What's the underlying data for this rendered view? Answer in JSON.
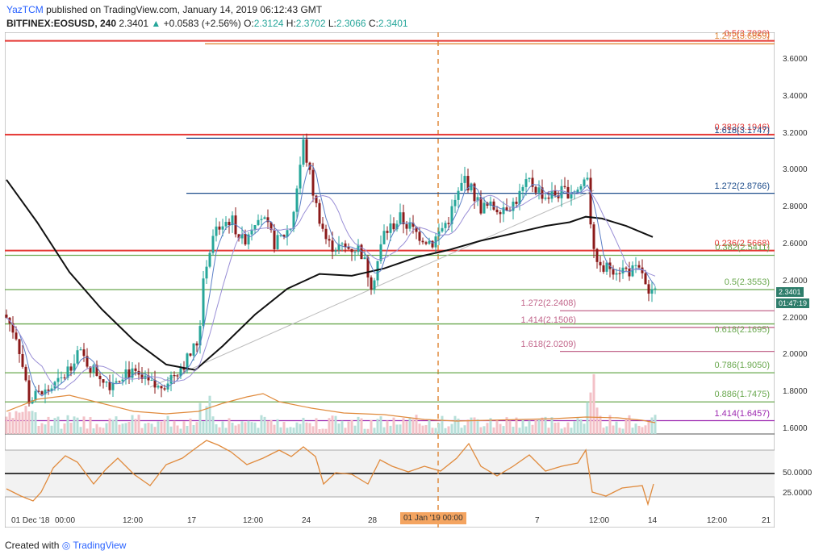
{
  "header": {
    "user": "YazTCM",
    "published": "published on TradingView.com, January 14, 2019 06:12:43 GMT",
    "symbol": "BITFINEX:EOSUSD, 240",
    "last": "2.3401",
    "change": "+0.0583 (+2.56%)",
    "o_label": "O:",
    "o": "2.3124",
    "h_label": "H:",
    "h": "2.3702",
    "l_label": "L:",
    "l": "2.3066",
    "c_label": "C:",
    "c": "2.3401"
  },
  "price_axis": [
    "3.6000",
    "3.4000",
    "3.2000",
    "3.0000",
    "2.8000",
    "2.6000",
    "2.4000",
    "2.2000",
    "2.0000",
    "1.8000",
    "1.6000"
  ],
  "current_price_tag": "2.3401",
  "countdown_tag": "01:47:19",
  "rsi_axis": [
    "50.0000",
    "25.0000"
  ],
  "time_axis": [
    {
      "label": "01 Dec '18"
    },
    {
      "label": "00:00"
    },
    {
      "label": "12:00"
    },
    {
      "label": "17"
    },
    {
      "label": "12:00"
    },
    {
      "label": "24"
    },
    {
      "label": "28"
    },
    {
      "label": "7"
    },
    {
      "label": "12:00"
    },
    {
      "label": "14"
    },
    {
      "label": "12:00"
    },
    {
      "label": "21"
    }
  ],
  "time_tag": "01 Jan '19  00:00",
  "fib_levels": [
    {
      "text": "0.5(3.7020)",
      "color": "#e53935",
      "price": 3.702
    },
    {
      "text": "1.272(3.6859)",
      "color": "#e08a3c",
      "price": 3.6859
    },
    {
      "text": "0.382(3.1946)",
      "color": "#e53935",
      "price": 3.1946
    },
    {
      "text": "1.618(3.1747)",
      "color": "#1f4e8c",
      "price": 3.1747
    },
    {
      "text": "1.272(2.8766)",
      "color": "#1f4e8c",
      "price": 2.8766
    },
    {
      "text": "0.236(2.5668)",
      "color": "#e53935",
      "price": 2.5668
    },
    {
      "text": "0.382(2.5411)",
      "color": "#6aa84f",
      "price": 2.5411
    },
    {
      "text": "0.5(2.3553)",
      "color": "#6aa84f",
      "price": 2.3553
    },
    {
      "text": "1.272(2.2408)",
      "color": "#c2668b",
      "price": 2.2408
    },
    {
      "text": "1.414(2.1506)",
      "color": "#c2668b",
      "price": 2.1506
    },
    {
      "text": "0.618(2.1695)",
      "color": "#6aa84f",
      "price": 2.1695
    },
    {
      "text": "1.618(2.0209)",
      "color": "#c2668b",
      "price": 2.0209
    },
    {
      "text": "0.786(1.9050)",
      "color": "#6aa84f",
      "price": 1.905
    },
    {
      "text": "0.886(1.7475)",
      "color": "#6aa84f",
      "price": 1.7475
    },
    {
      "text": "1.414(1.6457)",
      "color": "#9c27b0",
      "price": 1.6457
    }
  ],
  "footer": {
    "created": "Created with",
    "brand": "TradingView"
  },
  "colors": {
    "up": "#26a69a",
    "down": "#8b1a1a",
    "rsi": "#e08a3c"
  }
}
